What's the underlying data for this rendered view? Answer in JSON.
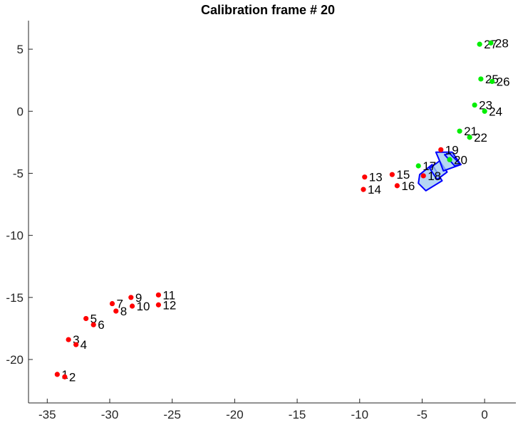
{
  "chart_data": {
    "type": "scatter",
    "title": "Calibration frame # 20",
    "xlabel": "",
    "ylabel": "",
    "xlim": [
      -36.5,
      2.5
    ],
    "ylim": [
      -23.5,
      7.3
    ],
    "xticks": [
      -35,
      -30,
      -25,
      -20,
      -15,
      -10,
      -5,
      0
    ],
    "yticks": [
      -20,
      -15,
      -10,
      -5,
      0,
      5
    ],
    "xtick_labels": [
      "-35",
      "-30",
      "-25",
      "-20",
      "-15",
      "-10",
      "-5",
      "0"
    ],
    "ytick_labels": [
      "-20",
      "-15",
      "-10",
      "-5",
      "0",
      "5"
    ],
    "grid": false,
    "colors": {
      "red": "#ff0000",
      "green": "#00ee00",
      "camera_edge": "#0000ff",
      "camera_fill": "#9cc8f0"
    },
    "points": [
      {
        "id": 1,
        "label": "1",
        "x": -34.2,
        "y": -21.2,
        "color": "red"
      },
      {
        "id": 2,
        "label": "2",
        "x": -33.6,
        "y": -21.4,
        "color": "red"
      },
      {
        "id": 3,
        "label": "3",
        "x": -33.3,
        "y": -18.4,
        "color": "red"
      },
      {
        "id": 4,
        "label": "4",
        "x": -32.7,
        "y": -18.8,
        "color": "red"
      },
      {
        "id": 5,
        "label": "5",
        "x": -31.9,
        "y": -16.7,
        "color": "red"
      },
      {
        "id": 6,
        "label": "6",
        "x": -31.3,
        "y": -17.2,
        "color": "red"
      },
      {
        "id": 7,
        "label": "7",
        "x": -29.8,
        "y": -15.5,
        "color": "red"
      },
      {
        "id": 8,
        "label": "8",
        "x": -29.5,
        "y": -16.1,
        "color": "red"
      },
      {
        "id": 9,
        "label": "9",
        "x": -28.3,
        "y": -15.0,
        "color": "red"
      },
      {
        "id": 10,
        "label": "10",
        "x": -28.2,
        "y": -15.7,
        "color": "red"
      },
      {
        "id": 11,
        "label": "11",
        "x": -26.1,
        "y": -14.8,
        "color": "red"
      },
      {
        "id": 12,
        "label": "12",
        "x": -26.1,
        "y": -15.6,
        "color": "red"
      },
      {
        "id": 13,
        "label": "13",
        "x": -9.6,
        "y": -5.3,
        "color": "red"
      },
      {
        "id": 14,
        "label": "14",
        "x": -9.7,
        "y": -6.3,
        "color": "red"
      },
      {
        "id": 15,
        "label": "15",
        "x": -7.4,
        "y": -5.1,
        "color": "red"
      },
      {
        "id": 16,
        "label": "16",
        "x": -7.0,
        "y": -6.0,
        "color": "red"
      },
      {
        "id": 17,
        "label": "17",
        "x": -5.3,
        "y": -4.4,
        "color": "green"
      },
      {
        "id": 18,
        "label": "18",
        "x": -4.9,
        "y": -5.2,
        "color": "red"
      },
      {
        "id": 19,
        "label": "19",
        "x": -3.5,
        "y": -3.1,
        "color": "red"
      },
      {
        "id": 20,
        "label": "20",
        "x": -2.8,
        "y": -3.9,
        "color": "green"
      },
      {
        "id": 21,
        "label": "21",
        "x": -2.0,
        "y": -1.6,
        "color": "green"
      },
      {
        "id": 22,
        "label": "22",
        "x": -1.2,
        "y": -2.1,
        "color": "green"
      },
      {
        "id": 23,
        "label": "23",
        "x": -0.8,
        "y": 0.5,
        "color": "green"
      },
      {
        "id": 24,
        "label": "24",
        "x": 0.0,
        "y": 0.0,
        "color": "green"
      },
      {
        "id": 25,
        "label": "25",
        "x": -0.3,
        "y": 2.6,
        "color": "green"
      },
      {
        "id": 26,
        "label": "26",
        "x": 0.6,
        "y": 2.4,
        "color": "green"
      },
      {
        "id": 27,
        "label": "27",
        "x": -0.4,
        "y": 5.4,
        "color": "green"
      },
      {
        "id": 28,
        "label": "28",
        "x": 0.5,
        "y": 5.5,
        "color": "green"
      }
    ],
    "camera_polygons": [
      [
        [
          -4.7,
          -6.4
        ],
        [
          -3.4,
          -5.6
        ],
        [
          -4.2,
          -4.3
        ],
        [
          -5.2,
          -5.1
        ],
        [
          -5.3,
          -5.8
        ]
      ],
      [
        [
          -3.8,
          -5.5
        ],
        [
          -3.0,
          -4.9
        ],
        [
          -3.6,
          -4.0
        ],
        [
          -4.4,
          -4.6
        ]
      ],
      [
        [
          -3.3,
          -4.8
        ],
        [
          -1.9,
          -4.3
        ],
        [
          -2.6,
          -3.3
        ],
        [
          -3.9,
          -3.3
        ],
        [
          -3.6,
          -4.0
        ]
      ],
      [
        [
          -2.4,
          -4.4
        ],
        [
          -1.9,
          -4.3
        ],
        [
          -2.8,
          -3.4
        ],
        [
          -3.2,
          -3.5
        ]
      ]
    ]
  }
}
